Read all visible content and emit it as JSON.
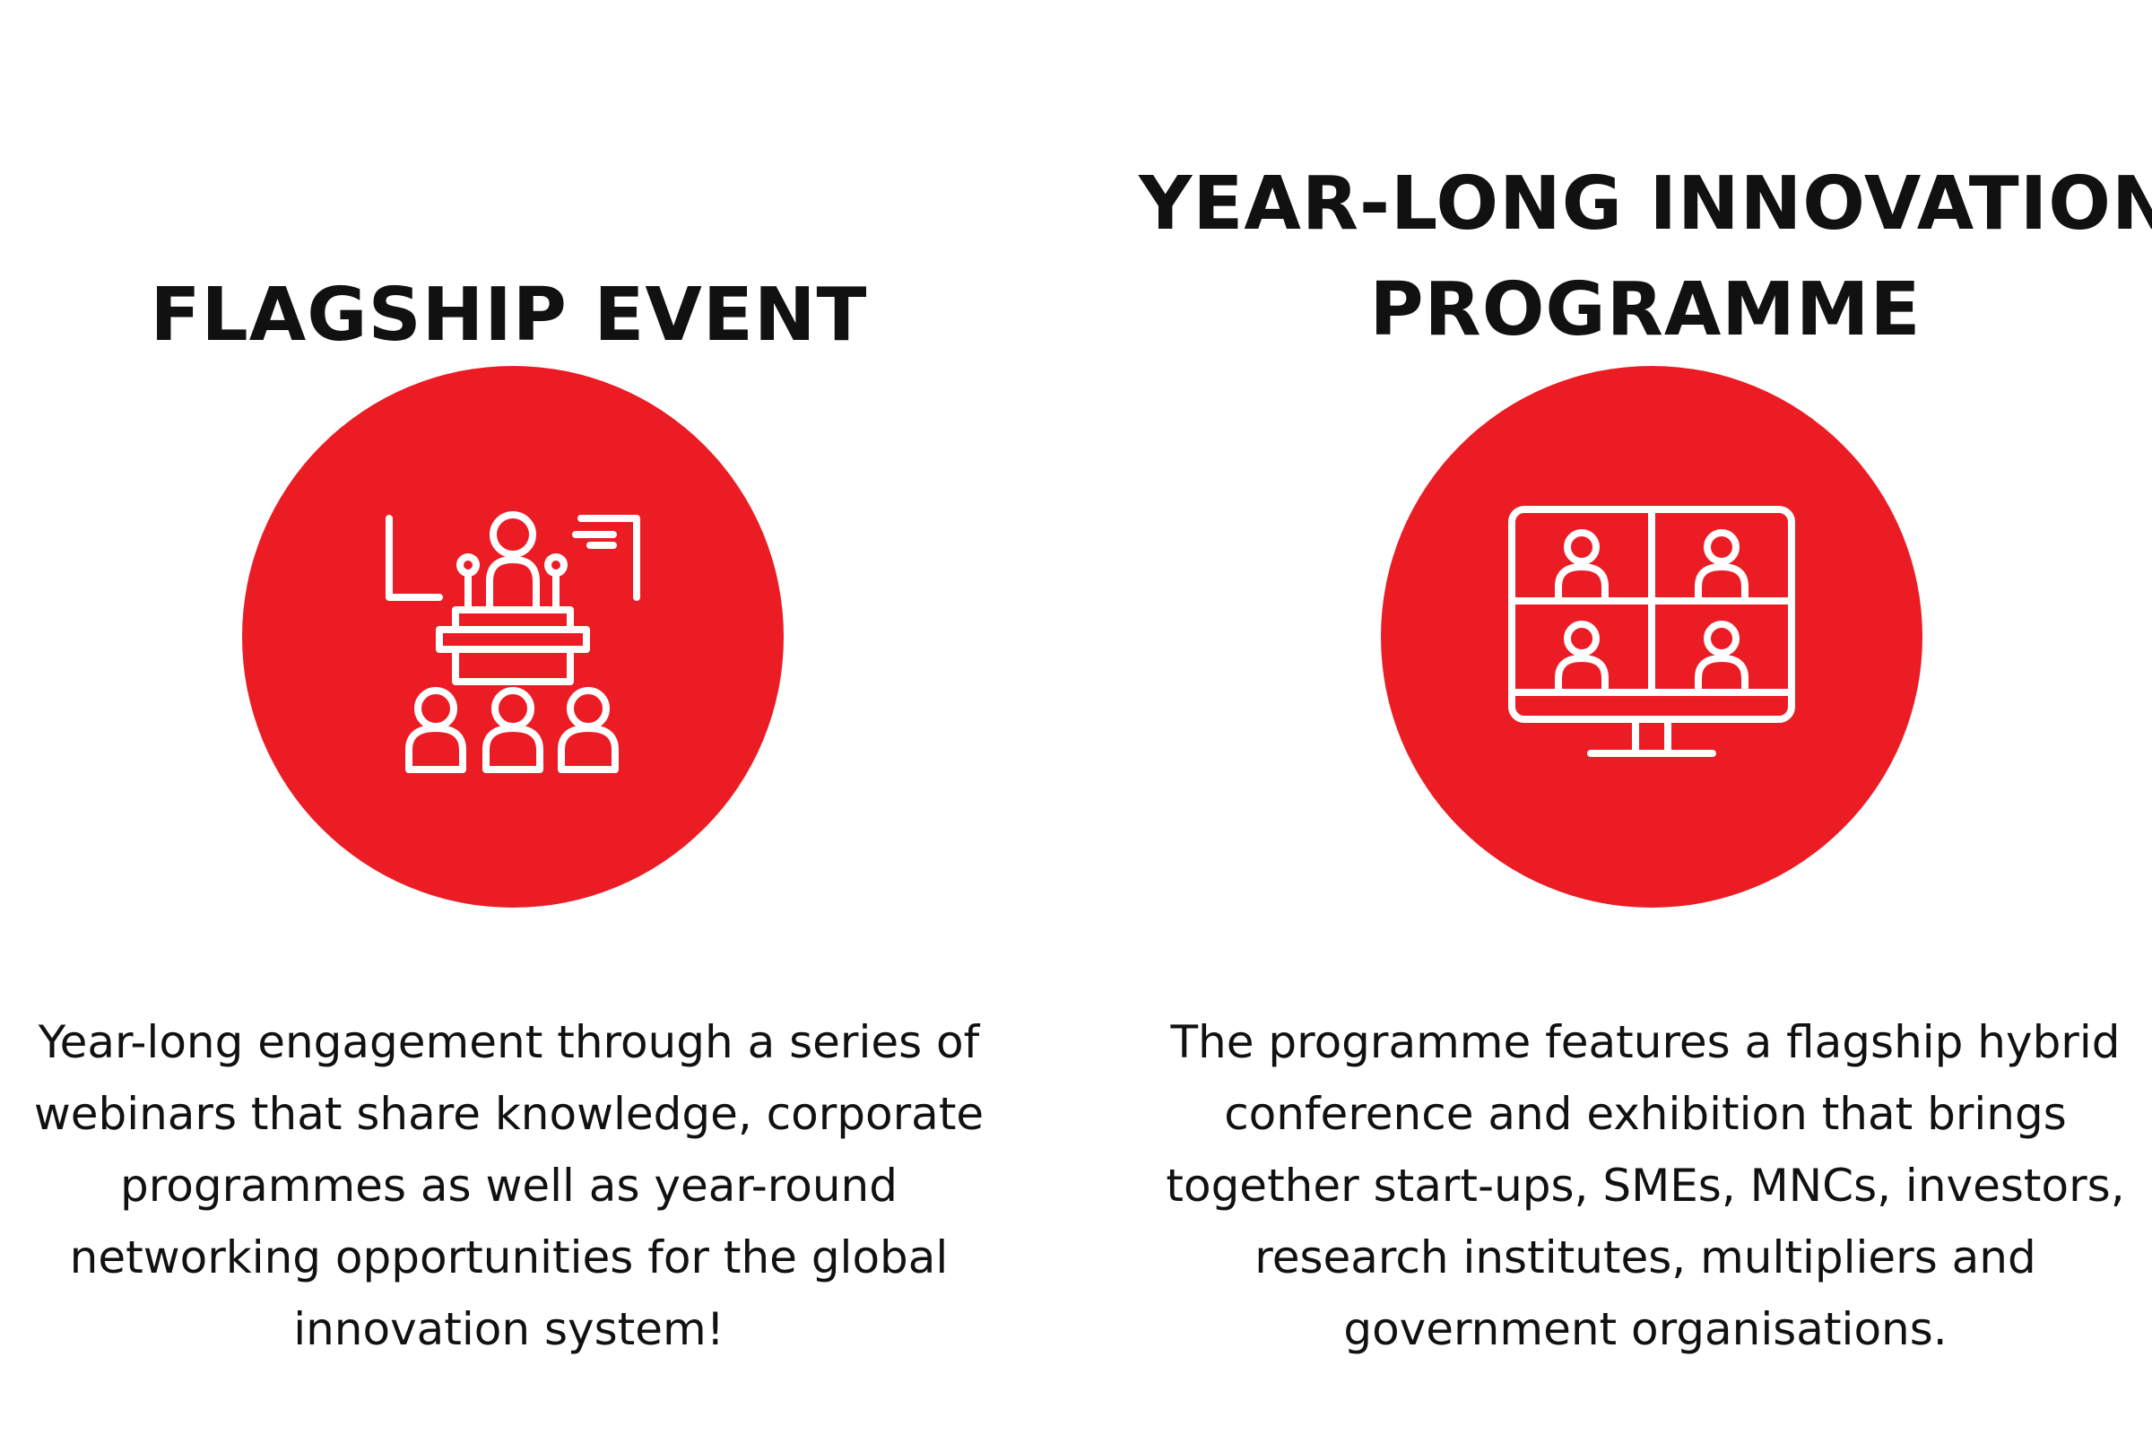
{
  "accent_color": "#ec1c24",
  "left": {
    "title_lines": [
      "FLAGSHIP EVENT"
    ],
    "icon": "presentation-audience-icon",
    "description_lines": [
      "Year-long engagement through a series of",
      "webinars that share knowledge, corporate",
      "programmes as well as year-round",
      "networking opportunities for the global",
      "innovation system!"
    ]
  },
  "right": {
    "title_lines": [
      "YEAR-LONG INNOVATION",
      "PROGRAMME"
    ],
    "icon": "video-conference-monitor-icon",
    "description_lines": [
      "The programme features a flagship hybrid",
      "conference and exhibition that brings",
      "together start-ups, SMEs, MNCs, investors,",
      "research institutes, multipliers and",
      "government organisations."
    ]
  }
}
